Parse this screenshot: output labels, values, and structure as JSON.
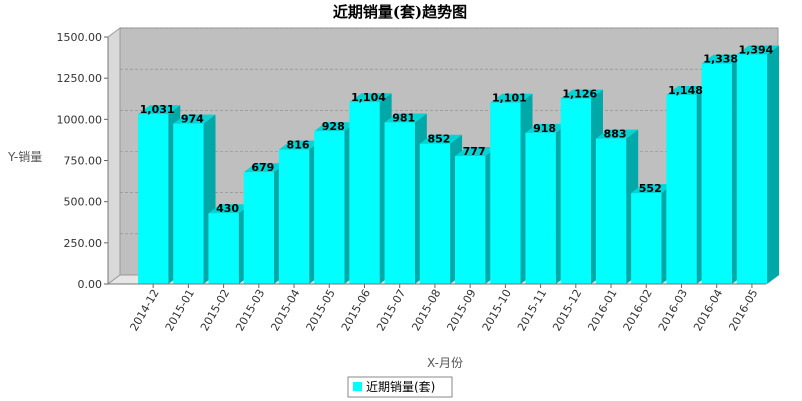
{
  "chart_data": {
    "type": "bar",
    "title": "近期销量(套)趋势图",
    "xlabel": "X-月份",
    "ylabel": "Y-销量",
    "ylim": [
      0,
      1500
    ],
    "yticks": [
      "0.00",
      "250.00",
      "500.00",
      "750.00",
      "1000.00",
      "1250.00",
      "1500.00"
    ],
    "grid": true,
    "legend_position": "bottom",
    "categories": [
      "2014-12",
      "2015-01",
      "2015-02",
      "2015-03",
      "2015-04",
      "2015-05",
      "2015-06",
      "2015-07",
      "2015-08",
      "2015-09",
      "2015-10",
      "2015-11",
      "2015-12",
      "2016-01",
      "2016-02",
      "2016-03",
      "2016-04",
      "2016-05"
    ],
    "series": [
      {
        "name": "近期销量(套)",
        "values": [
          1031,
          974,
          430,
          679,
          816,
          928,
          1104,
          981,
          852,
          777,
          1101,
          918,
          1126,
          883,
          552,
          1148,
          1338,
          1394
        ],
        "labels": [
          "1,031",
          "974",
          "430",
          "679",
          "816",
          "928",
          "1,104",
          "981",
          "852",
          "777",
          "1,101",
          "918",
          "1,126",
          "883",
          "552",
          "1,148",
          "1,338",
          "1,394"
        ]
      }
    ],
    "colors": {
      "bar_front": "#00ffff",
      "bar_side": "#00a8a8",
      "bar_top": "#00d4d4",
      "plot_back": "#bfbfbf",
      "plot_wall": "#d9d9d9",
      "plot_floor": "#e6e6e6",
      "grid": "#8a8a8a"
    }
  }
}
